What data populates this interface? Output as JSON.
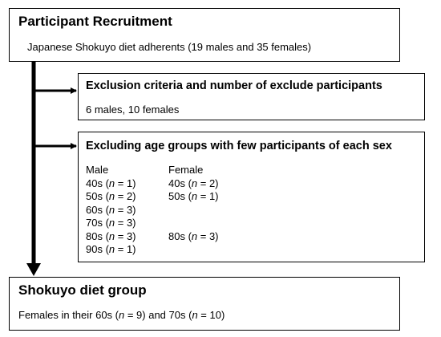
{
  "recruitment": {
    "title": "Participant Recruitment",
    "text": "Japanese Shokuyo diet adherents (19 males and 35 females)"
  },
  "exclusion": {
    "title": "Exclusion criteria and number of exclude participants",
    "text": "6 males, 10 females"
  },
  "age_groups": {
    "title": "Excluding age groups with few participants of each sex",
    "male_header": "Male",
    "female_header": "Female",
    "male_rows": [
      {
        "age": "40s",
        "n": "1"
      },
      {
        "age": "50s",
        "n": "2"
      },
      {
        "age": "60s",
        "n": "3"
      },
      {
        "age": "70s",
        "n": "3"
      },
      {
        "age": "80s",
        "n": "3"
      },
      {
        "age": "90s",
        "n": "1"
      }
    ],
    "female_rows": [
      {
        "age": "40s",
        "n": "2"
      },
      {
        "age": "50s",
        "n": "1"
      },
      {
        "age": "",
        "n": ""
      },
      {
        "age": "",
        "n": ""
      },
      {
        "age": "80s",
        "n": "3"
      },
      {
        "age": "",
        "n": ""
      }
    ]
  },
  "final_group": {
    "title": "Shokuyo diet group",
    "text_parts": [
      "Females in their 60s (",
      "n",
      " = 9) and 70s (",
      "n",
      " = 10)"
    ]
  },
  "n_symbol": "n"
}
